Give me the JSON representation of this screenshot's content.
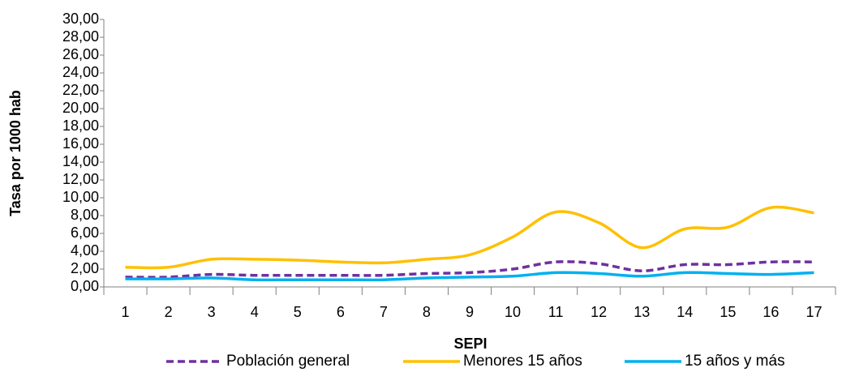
{
  "chart_data": {
    "type": "line",
    "x_label": "SEPI",
    "y_label": "Tasa por 1000 hab",
    "categories": [
      "1",
      "2",
      "3",
      "4",
      "5",
      "6",
      "7",
      "8",
      "9",
      "10",
      "11",
      "12",
      "13",
      "14",
      "15",
      "16",
      "17"
    ],
    "series": [
      {
        "name": "Población general",
        "color": "#7030a0",
        "dashed": true,
        "values": [
          1.1,
          1.1,
          1.4,
          1.3,
          1.3,
          1.3,
          1.3,
          1.5,
          1.6,
          2.0,
          2.8,
          2.6,
          1.8,
          2.5,
          2.5,
          2.8,
          2.8
        ]
      },
      {
        "name": "Menores 15 años",
        "color": "#ffc000",
        "dashed": false,
        "values": [
          2.2,
          2.2,
          3.1,
          3.1,
          3.0,
          2.8,
          2.7,
          3.1,
          3.6,
          5.6,
          8.4,
          7.2,
          4.4,
          6.5,
          6.7,
          8.9,
          8.3
        ]
      },
      {
        "name": "15 años y más",
        "color": "#00b0f0",
        "dashed": false,
        "values": [
          0.9,
          0.9,
          1.0,
          0.8,
          0.8,
          0.8,
          0.8,
          1.0,
          1.1,
          1.2,
          1.6,
          1.5,
          1.2,
          1.6,
          1.5,
          1.4,
          1.6
        ]
      }
    ],
    "ylim": [
      0,
      30
    ],
    "yticks": [
      {
        "value": 0,
        "label": "0,00"
      },
      {
        "value": 2,
        "label": "2,00"
      },
      {
        "value": 4,
        "label": "4,00"
      },
      {
        "value": 6,
        "label": "6,00"
      },
      {
        "value": 8,
        "label": "8,00"
      },
      {
        "value": 10,
        "label": "10,00"
      },
      {
        "value": 12,
        "label": "12,00"
      },
      {
        "value": 14,
        "label": "14,00"
      },
      {
        "value": 16,
        "label": "16,00"
      },
      {
        "value": 18,
        "label": "18,00"
      },
      {
        "value": 20,
        "label": "20,00"
      },
      {
        "value": 22,
        "label": "22,00"
      },
      {
        "value": 24,
        "label": "24,00"
      },
      {
        "value": 26,
        "label": "26,00"
      },
      {
        "value": 28,
        "label": "28,00"
      },
      {
        "value": 30,
        "label": "30,00"
      }
    ],
    "grid": false,
    "smooth": true,
    "legend": "bottom"
  }
}
